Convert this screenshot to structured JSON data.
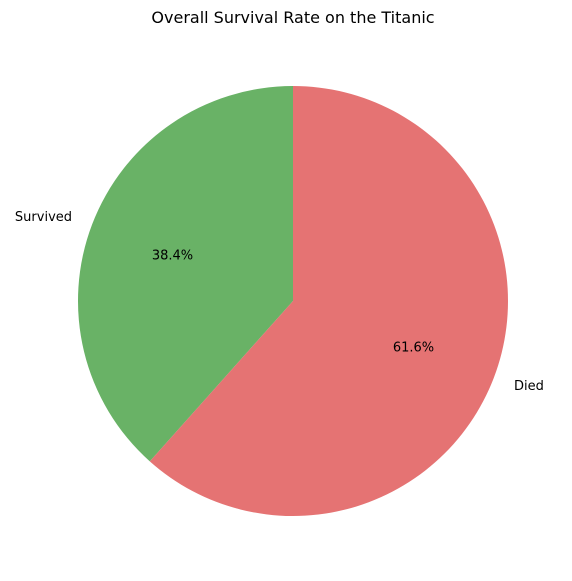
{
  "chart_data": {
    "type": "pie",
    "title": "Overall Survival Rate on the Titanic",
    "categories": [
      "Survived",
      "Died"
    ],
    "values": [
      38.4,
      61.6
    ],
    "value_labels": [
      "38.4%",
      "61.6%"
    ],
    "colors": [
      "#69b266",
      "#e57373"
    ],
    "start_angle_deg": 90,
    "direction": "counterclockwise",
    "legend": "none"
  }
}
